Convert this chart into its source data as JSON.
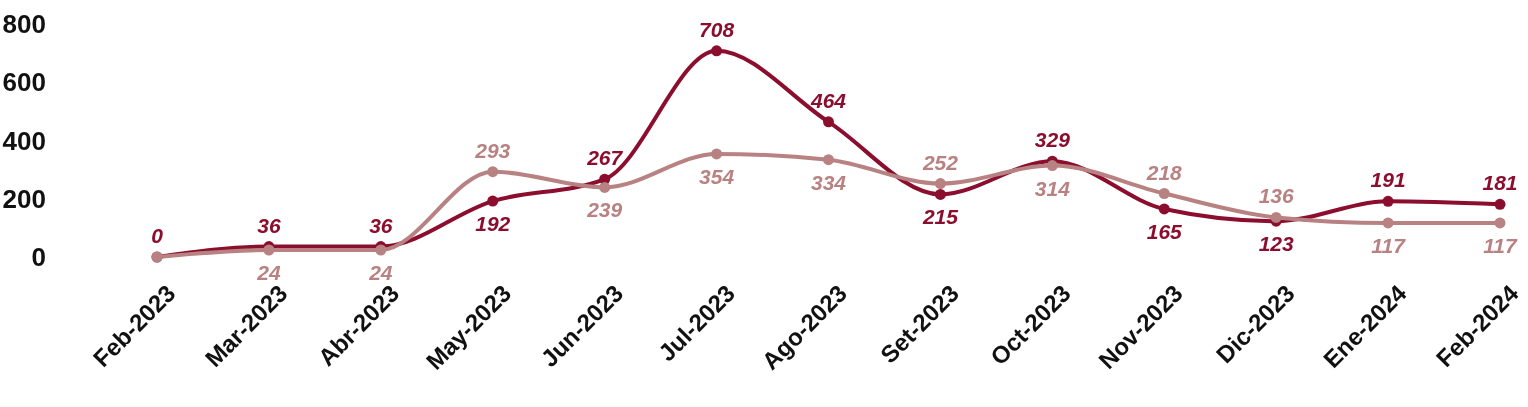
{
  "chart_data": {
    "type": "line",
    "categories": [
      "Feb-2023",
      "Mar-2023",
      "Abr-2023",
      "May-2023",
      "Jun-2023",
      "Jul-2023",
      "Ago-2023",
      "Set-2023",
      "Oct-2023",
      "Nov-2023",
      "Dic-2023",
      "Ene-2024",
      "Feb-2024"
    ],
    "series": [
      {
        "color": "#8b0e2e",
        "values": [
          0,
          36,
          36,
          192,
          267,
          708,
          464,
          215,
          329,
          165,
          123,
          191,
          181
        ],
        "value_labels": [
          "0",
          "36",
          "36",
          "192",
          "267",
          "708",
          "464",
          "215",
          "329",
          "165",
          "123",
          "191",
          "181"
        ]
      },
      {
        "color": "#b88282",
        "values": [
          0,
          24,
          24,
          293,
          239,
          354,
          334,
          252,
          314,
          218,
          136,
          117,
          117
        ],
        "value_labels": [
          null,
          "24",
          "24",
          "293",
          "239",
          "354",
          "334",
          "252",
          "314",
          "218",
          "136",
          "117",
          "117"
        ]
      }
    ],
    "ylim": [
      0,
      800
    ],
    "yticks": [
      0,
      200,
      400,
      600,
      800
    ],
    "grid": false,
    "marker": "circle",
    "line_style": "solid"
  }
}
